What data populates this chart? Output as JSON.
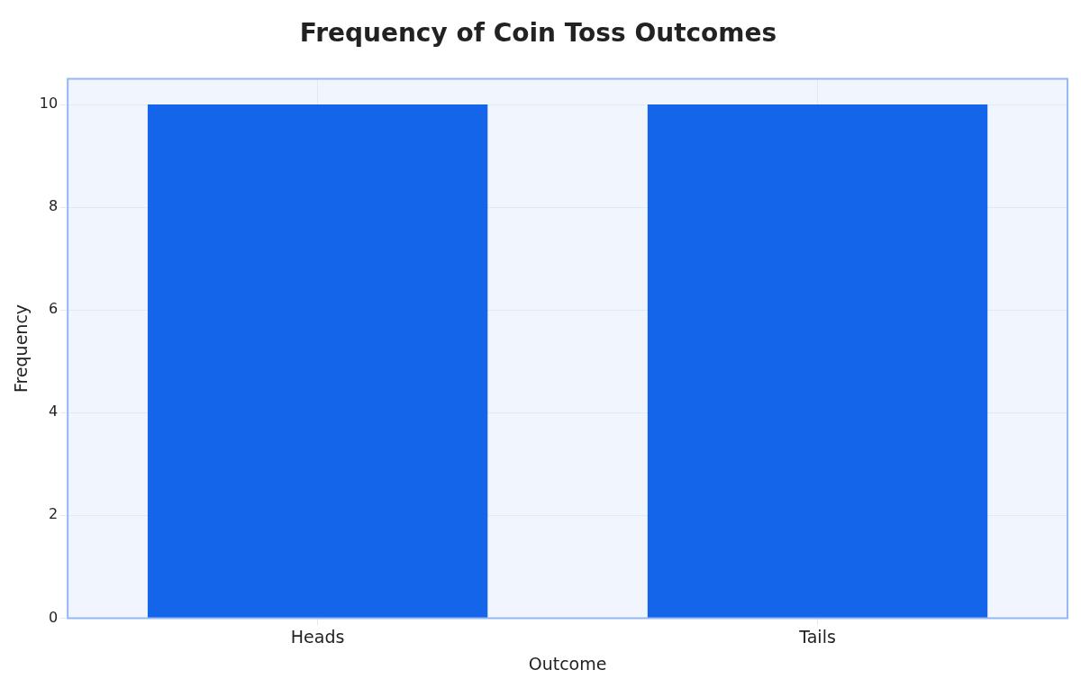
{
  "chart_data": {
    "type": "bar",
    "title": "Frequency of Coin Toss Outcomes",
    "xlabel": "Outcome",
    "ylabel": "Frequency",
    "categories": [
      "Heads",
      "Tails"
    ],
    "series": [
      {
        "color": "#1565eb",
        "values": [
          10,
          10
        ]
      }
    ],
    "ylim": [
      0,
      10.5
    ],
    "yticks": [
      0,
      2,
      4,
      6,
      8,
      10
    ],
    "grid": true,
    "legend": false
  }
}
